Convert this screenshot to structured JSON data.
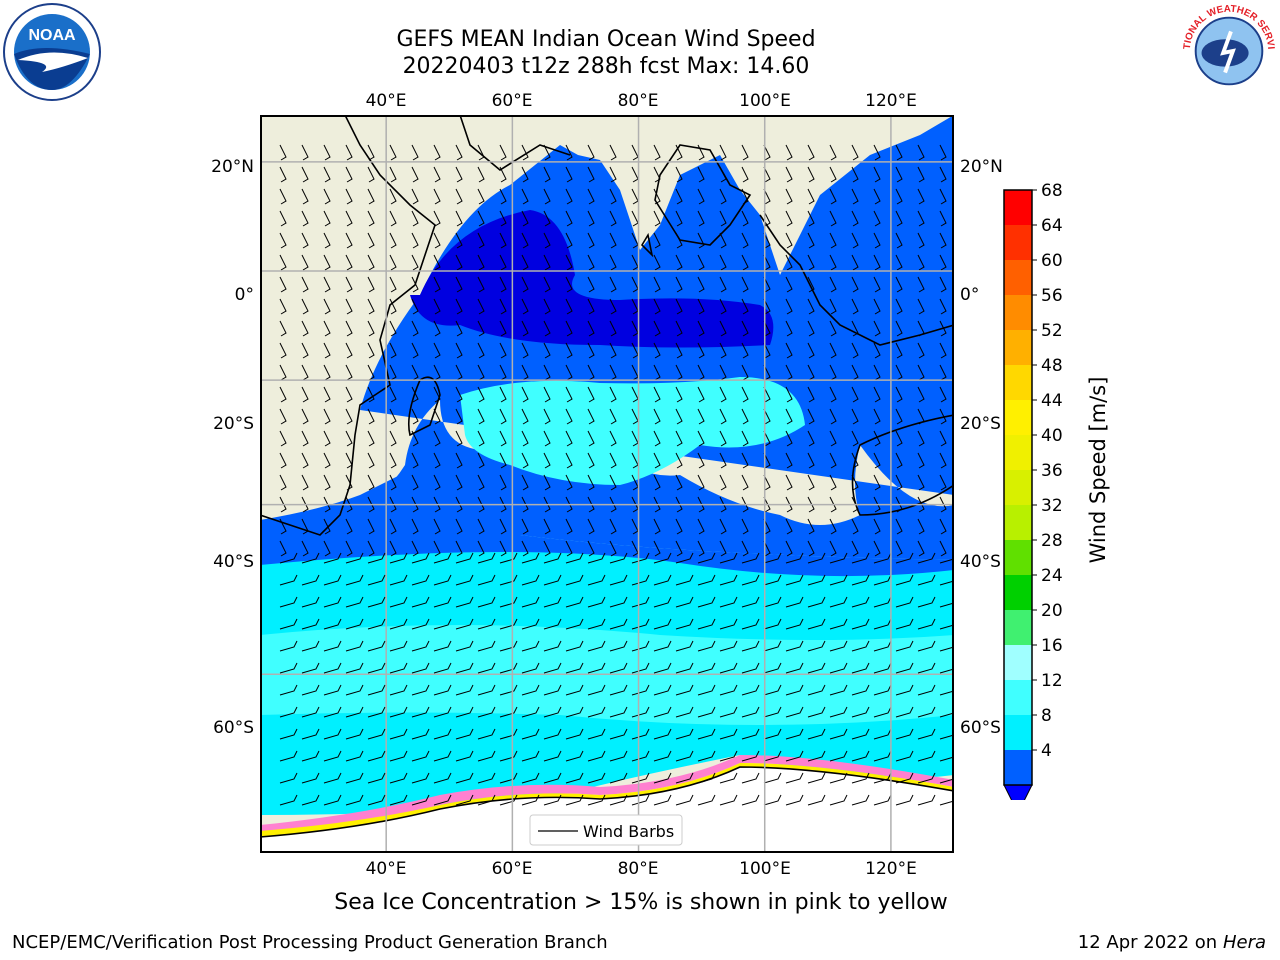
{
  "title": {
    "line1": "GEFS MEAN Indian Ocean Wind Speed",
    "line2": "20220403 t12z 288h fcst   Max: 14.60"
  },
  "map": {
    "lon_ticks": [
      "40°E",
      "60°E",
      "80°E",
      "100°E",
      "120°E"
    ],
    "lat_ticks_left": [
      "20°N",
      "0°",
      "20°S",
      "40°S",
      "60°S"
    ],
    "lat_ticks_right": [
      "20°N",
      "0°",
      "20°S",
      "40°S",
      "60°S"
    ],
    "legend_label": "Wind Barbs",
    "land_color": "#eeeedc",
    "extent": {
      "lon_min": 20,
      "lon_max": 130,
      "lat_min": -73,
      "lat_max": 28
    }
  },
  "colorbar": {
    "label": "Wind Speed [m/s]",
    "ticks": [
      "68",
      "64",
      "60",
      "56",
      "52",
      "48",
      "44",
      "40",
      "36",
      "32",
      "28",
      "24",
      "20",
      "16",
      "12",
      "8",
      "4"
    ],
    "colors": [
      "#ff0000",
      "#ff3000",
      "#ff6000",
      "#ff8c00",
      "#ffb000",
      "#ffd800",
      "#fff000",
      "#f0f000",
      "#d8f000",
      "#b8f000",
      "#60e000",
      "#00d000",
      "#40f070",
      "#a0ffff",
      "#40ffff",
      "#00f0ff",
      "#0060ff"
    ],
    "under_color": "#0000ff"
  },
  "note": "Sea Ice Concentration > 15% is shown in pink to yellow",
  "footer": {
    "left": "NCEP/EMC/Verification Post Processing Product Generation Branch",
    "right_prefix": "12 Apr 2022 on ",
    "right_host": "Hera"
  },
  "logos": {
    "noaa": "NOAA",
    "nws": "NATIONAL WEATHER SERVICE"
  }
}
